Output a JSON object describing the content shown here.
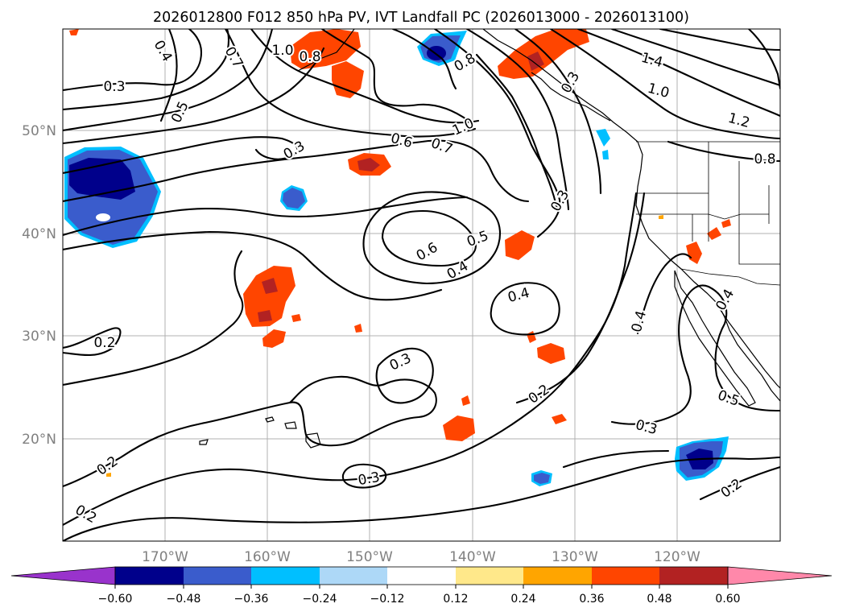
{
  "title": "2026012800 F012 850 hPa PV, IVT Landfall PC (2026013000 - 2026013100)",
  "lon_labels": [
    "170°W",
    "160°W",
    "150°W",
    "140°W",
    "130°W",
    "120°W"
  ],
  "lat_labels": [
    "50°N",
    "40°N",
    "30°N",
    "20°N"
  ],
  "colorbar": {
    "ticks": [
      "−0.60",
      "−0.48",
      "−0.36",
      "−0.24",
      "−0.12",
      "0.12",
      "0.24",
      "0.36",
      "0.48",
      "0.60"
    ],
    "colors": [
      "#9933cc",
      "#00008b",
      "#3a5ccc",
      "#00bfff",
      "#add8f7",
      "#ffffff",
      "#ffe88a",
      "#ffa500",
      "#ff4500",
      "#b22222",
      "#ff88aa"
    ]
  },
  "contour_labels": [
    "0.3",
    "0.4",
    "0.5",
    "0.7",
    "1.0",
    "0.8",
    "0.8",
    "1.4",
    "1.0",
    "1.2",
    "0.8",
    "1.0",
    "0.6",
    "0.7",
    "0.3",
    "0.3",
    "0.6",
    "0.5",
    "0.4",
    "0.4",
    "0.2",
    "0.3",
    "0.2",
    "0.3",
    "0.4",
    "0.4",
    "0.5",
    "0.3",
    "0.2",
    "0.2",
    "0.3",
    "0.2"
  ]
}
